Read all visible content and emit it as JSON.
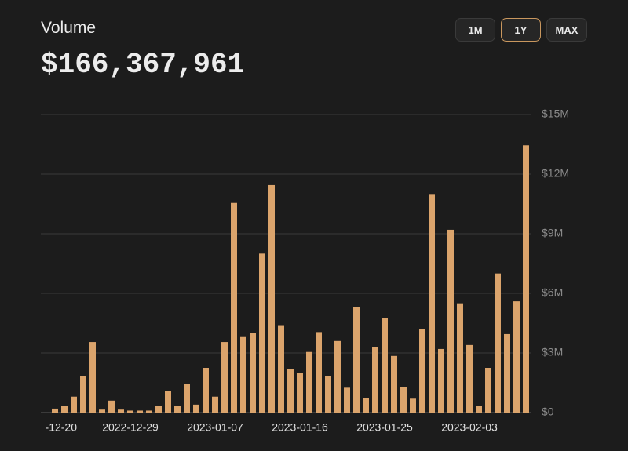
{
  "header": {
    "title": "Volume",
    "total": "$166,367,961"
  },
  "buttons": {
    "items": [
      "1M",
      "1Y",
      "MAX"
    ],
    "selected": "1Y"
  },
  "chart_data": {
    "type": "bar",
    "color": "#dba46c",
    "categories": [
      "-12-20",
      null,
      null,
      null,
      null,
      null,
      null,
      null,
      null,
      "2022-12-29",
      null,
      null,
      null,
      null,
      null,
      null,
      null,
      null,
      "2023-01-07",
      null,
      null,
      null,
      null,
      null,
      null,
      null,
      null,
      "2023-01-16",
      null,
      null,
      null,
      null,
      null,
      null,
      null,
      null,
      "2023-01-25",
      null,
      null,
      null,
      null,
      null,
      null,
      null,
      null,
      "2023-02-03",
      null,
      null,
      null,
      null,
      null,
      null
    ],
    "values": [
      null,
      0.2,
      0.35,
      0.8,
      1.85,
      3.55,
      0.15,
      0.6,
      0.15,
      0.1,
      0.1,
      0.1,
      0.35,
      1.1,
      0.35,
      1.45,
      0.4,
      2.25,
      0.8,
      3.55,
      10.55,
      3.8,
      4.0,
      8.0,
      11.45,
      4.4,
      2.2,
      2.0,
      3.05,
      4.05,
      1.85,
      3.6,
      1.25,
      5.3,
      0.75,
      3.3,
      4.75,
      2.85,
      1.3,
      0.7,
      4.2,
      11.0,
      3.2,
      9.2,
      5.5,
      3.4,
      0.35,
      2.25,
      7.0,
      3.95,
      5.6,
      13.45
    ],
    "ylim": [
      0,
      15
    ],
    "yticks": [
      {
        "value": 0,
        "label": "$0"
      },
      {
        "value": 3,
        "label": "$3M"
      },
      {
        "value": 6,
        "label": "$6M"
      },
      {
        "value": 9,
        "label": "$9M"
      },
      {
        "value": 12,
        "label": "$12M"
      },
      {
        "value": 15,
        "label": "$15M"
      }
    ],
    "grid": true
  }
}
